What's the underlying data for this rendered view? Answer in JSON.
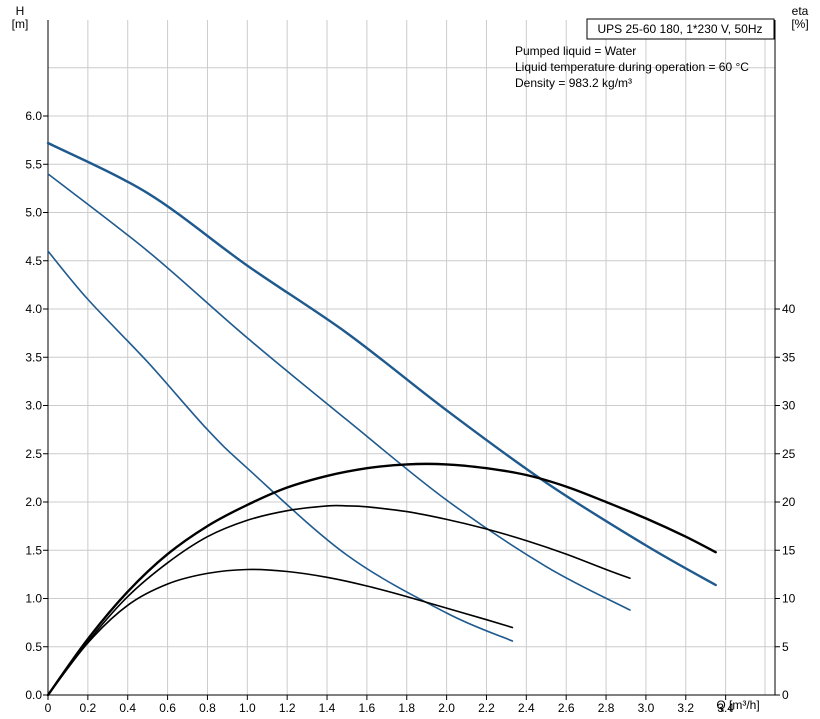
{
  "chart_data": {
    "type": "line",
    "title": "UPS 25-60 180, 1*230 V, 50Hz",
    "info": [
      "Pumped liquid = Water",
      "Liquid temperature during operation = 60 °C",
      "Density = 983.2 kg/m³"
    ],
    "y_left": {
      "label_top": "H",
      "label_unit": "[m]",
      "ylim": [
        0,
        6.0
      ],
      "ticks": [
        "0.0",
        "0.5",
        "1.0",
        "1.5",
        "2.0",
        "2.5",
        "3.0",
        "3.5",
        "4.0",
        "4.5",
        "5.0",
        "5.5",
        "6.0"
      ]
    },
    "y_right": {
      "label_top": "eta",
      "label_unit": "[%]",
      "ylim": [
        0,
        60
      ],
      "ticks": [
        "0",
        "5",
        "10",
        "15",
        "20",
        "25",
        "30",
        "35",
        "40"
      ]
    },
    "x": {
      "label": "Q [m³/h]",
      "xlim": [
        0,
        3.6
      ],
      "ticks": [
        "0",
        "0.2",
        "0.4",
        "0.6",
        "0.8",
        "1.0",
        "1.2",
        "1.4",
        "1.6",
        "1.8",
        "2.0",
        "2.2",
        "2.4",
        "2.6",
        "2.8",
        "3.0",
        "3.2",
        "3.4"
      ]
    },
    "grid": true,
    "colors": {
      "head": "#1f5a8e",
      "efficiency": "#000000",
      "grid": "#cccccc"
    },
    "series": [
      {
        "kind": "head",
        "axis": "left",
        "bold": true,
        "points": [
          [
            0,
            5.72
          ],
          [
            0.5,
            5.2
          ],
          [
            1.0,
            4.45
          ],
          [
            1.5,
            3.75
          ],
          [
            2.0,
            2.95
          ],
          [
            2.5,
            2.2
          ],
          [
            3.0,
            1.55
          ],
          [
            3.35,
            1.14
          ]
        ]
      },
      {
        "kind": "head",
        "axis": "left",
        "bold": false,
        "points": [
          [
            0,
            5.4
          ],
          [
            0.5,
            4.6
          ],
          [
            1.0,
            3.7
          ],
          [
            1.5,
            2.85
          ],
          [
            2.0,
            2.02
          ],
          [
            2.5,
            1.33
          ],
          [
            2.92,
            0.88
          ]
        ]
      },
      {
        "kind": "head",
        "axis": "left",
        "bold": false,
        "points": [
          [
            0,
            4.6
          ],
          [
            0.2,
            4.1
          ],
          [
            0.5,
            3.45
          ],
          [
            0.8,
            2.75
          ],
          [
            1.0,
            2.35
          ],
          [
            1.5,
            1.45
          ],
          [
            2.0,
            0.85
          ],
          [
            2.33,
            0.56
          ]
        ]
      },
      {
        "kind": "efficiency",
        "axis": "right",
        "bold": true,
        "points": [
          [
            0,
            0
          ],
          [
            0.2,
            5.8
          ],
          [
            0.4,
            10.7
          ],
          [
            0.6,
            14.6
          ],
          [
            0.8,
            17.5
          ],
          [
            1.0,
            19.7
          ],
          [
            1.2,
            21.5
          ],
          [
            1.4,
            22.7
          ],
          [
            1.6,
            23.5
          ],
          [
            1.8,
            23.9
          ],
          [
            2.0,
            23.9
          ],
          [
            2.2,
            23.5
          ],
          [
            2.4,
            22.8
          ],
          [
            2.6,
            21.6
          ],
          [
            2.8,
            20.0
          ],
          [
            3.0,
            18.3
          ],
          [
            3.2,
            16.4
          ],
          [
            3.35,
            14.8
          ]
        ]
      },
      {
        "kind": "efficiency",
        "axis": "right",
        "bold": false,
        "points": [
          [
            0,
            0
          ],
          [
            0.2,
            5.5
          ],
          [
            0.4,
            10.2
          ],
          [
            0.6,
            13.7
          ],
          [
            0.8,
            16.4
          ],
          [
            1.0,
            18.1
          ],
          [
            1.2,
            19.1
          ],
          [
            1.4,
            19.6
          ],
          [
            1.5,
            19.6
          ],
          [
            1.6,
            19.5
          ],
          [
            1.8,
            19.0
          ],
          [
            2.0,
            18.2
          ],
          [
            2.2,
            17.2
          ],
          [
            2.4,
            16.0
          ],
          [
            2.6,
            14.6
          ],
          [
            2.8,
            13.0
          ],
          [
            2.92,
            12.1
          ]
        ]
      },
      {
        "kind": "efficiency",
        "axis": "right",
        "bold": false,
        "points": [
          [
            0,
            0
          ],
          [
            0.2,
            5.4
          ],
          [
            0.4,
            9.3
          ],
          [
            0.6,
            11.5
          ],
          [
            0.8,
            12.6
          ],
          [
            1.0,
            13.0
          ],
          [
            1.2,
            12.8
          ],
          [
            1.4,
            12.2
          ],
          [
            1.6,
            11.3
          ],
          [
            1.8,
            10.2
          ],
          [
            2.0,
            9.0
          ],
          [
            2.2,
            7.8
          ],
          [
            2.33,
            7.0
          ]
        ]
      }
    ]
  }
}
